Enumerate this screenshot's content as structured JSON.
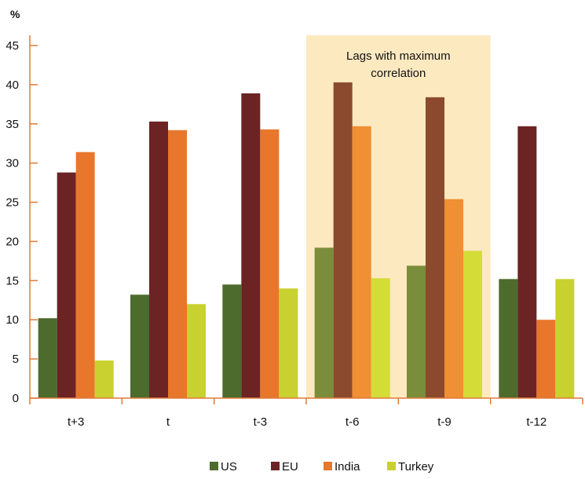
{
  "chart_data": {
    "type": "bar",
    "ylabel": "%",
    "ylim": [
      0,
      45
    ],
    "yticks": [
      0,
      5,
      10,
      15,
      20,
      25,
      30,
      35,
      40,
      45
    ],
    "categories": [
      "t+3",
      "t",
      "t-3",
      "t-6",
      "t-9",
      "t-12"
    ],
    "series": [
      {
        "name": "US",
        "color": "#4e6b2e",
        "values": [
          10.2,
          13.2,
          14.5,
          19.2,
          16.9,
          15.2
        ]
      },
      {
        "name": "EU",
        "color": "#6b2323",
        "values": [
          28.8,
          35.3,
          38.9,
          40.3,
          38.4,
          34.7
        ]
      },
      {
        "name": "India",
        "color": "#e8762b",
        "values": [
          31.4,
          34.2,
          34.3,
          34.7,
          25.4,
          10.0
        ]
      },
      {
        "name": "Turkey",
        "color": "#c8d12f",
        "values": [
          4.8,
          12.0,
          14.0,
          15.3,
          18.8,
          15.2
        ]
      }
    ],
    "highlight": {
      "categories": [
        "t-6",
        "t-9"
      ],
      "label_lines": [
        "Lags with maximum",
        "correlation"
      ],
      "color": "#fde9c0"
    },
    "highlight_series_colors": [
      "#7a8d3a",
      "#8b4a2e",
      "#f08f33",
      "#d4dc38"
    ],
    "legend_position": "bottom",
    "grid": false
  }
}
